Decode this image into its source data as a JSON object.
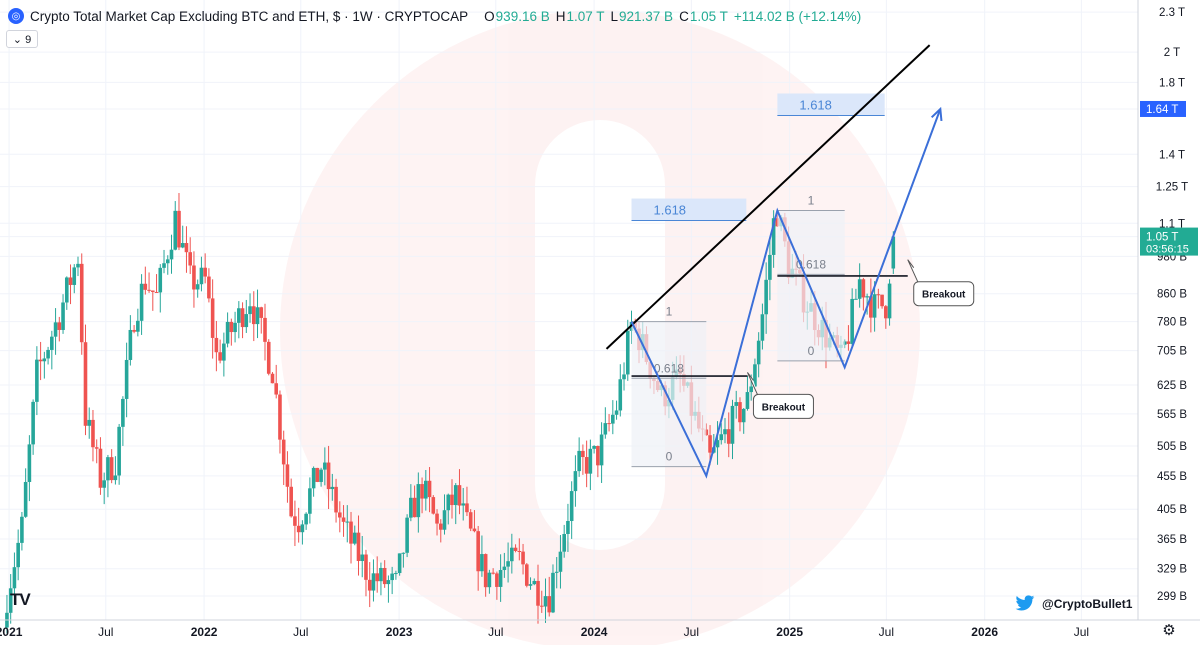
{
  "header": {
    "logo_icon": "crypto-logo-icon",
    "title": "Crypto Total Market Cap Excluding BTC and ETH, $ · 1W · CRYPTOCAP",
    "open_label": "O",
    "open_value": "939.16 B",
    "high_label": "H",
    "high_value": "1.07 T",
    "low_label": "L",
    "low_value": "921.37 B",
    "close_label": "C",
    "close_value": "1.05 T",
    "change": "+114.02 B (+12.14%)",
    "collapse_label": "⌄ 9"
  },
  "credit": {
    "handle": "@CryptoBullet1",
    "icon": "twitter-bird-icon"
  },
  "branding": {
    "logo": "TV"
  },
  "colors": {
    "up": "#26a69a",
    "down": "#ef5350",
    "trend": "#3b6fd8",
    "fib_fill": "#dbe7fa",
    "fib_text": "#4a86d6",
    "price_tag": "#2962ff",
    "last_price_tag": "#22ab94"
  },
  "chart_data": {
    "type": "candlestick",
    "title": "Crypto Total Market Cap Excluding BTC and ETH, $ · 1W · CRYPTOCAP",
    "y_axis": {
      "scale": "log",
      "ticks": [
        "2.3 T",
        "2 T",
        "1.8 T",
        "1.64 T",
        "1.4 T",
        "1.25 T",
        "1.1 T",
        "1.05 T",
        "980 B",
        "860 B",
        "780 B",
        "705 B",
        "625 B",
        "565 B",
        "505 B",
        "455 B",
        "405 B",
        "365 B",
        "329 B",
        "299 B"
      ],
      "tick_values": [
        2300,
        2000,
        1800,
        1640,
        1400,
        1250,
        1100,
        1050,
        980,
        860,
        780,
        705,
        625,
        565,
        505,
        455,
        405,
        365,
        329,
        299
      ],
      "range": [
        275,
        2400
      ],
      "unit": "B"
    },
    "x_axis": {
      "ticks": [
        "2021",
        "Jul",
        "2022",
        "Jul",
        "2023",
        "Jul",
        "2024",
        "Jul",
        "2025",
        "Jul",
        "2026",
        "Jul"
      ],
      "tick_dates": [
        "2021-01-01",
        "2021-07-01",
        "2022-01-01",
        "2022-07-01",
        "2023-01-01",
        "2023-07-01",
        "2024-01-01",
        "2024-07-01",
        "2025-01-01",
        "2025-07-01",
        "2026-01-01",
        "2026-07-01"
      ],
      "range": [
        "2020-12-15",
        "2026-10-15"
      ]
    },
    "price_tags": [
      {
        "label": "1.64 T",
        "value": 1640,
        "style": "target"
      },
      {
        "label": "1.05 T",
        "sublabel": "03:56:15",
        "value": 1050,
        "style": "last"
      }
    ],
    "candle_path": [
      [
        "2020-12-28",
        300
      ],
      [
        "2021-01-25",
        380
      ],
      [
        "2021-02-22",
        650
      ],
      [
        "2021-04-05",
        800
      ],
      [
        "2021-05-10",
        980
      ],
      [
        "2021-05-24",
        560
      ],
      [
        "2021-06-21",
        450
      ],
      [
        "2021-07-19",
        480
      ],
      [
        "2021-08-23",
        800
      ],
      [
        "2021-09-13",
        900
      ],
      [
        "2021-10-04",
        850
      ],
      [
        "2021-11-08",
        1120
      ],
      [
        "2021-12-06",
        900
      ],
      [
        "2022-01-03",
        900
      ],
      [
        "2022-01-24",
        690
      ],
      [
        "2022-03-28",
        850
      ],
      [
        "2022-05-09",
        660
      ],
      [
        "2022-06-13",
        400
      ],
      [
        "2022-06-27",
        390
      ],
      [
        "2022-08-08",
        470
      ],
      [
        "2022-09-19",
        380
      ],
      [
        "2022-11-07",
        320
      ],
      [
        "2022-12-26",
        310
      ],
      [
        "2023-01-23",
        400
      ],
      [
        "2023-02-13",
        440
      ],
      [
        "2023-03-13",
        380
      ],
      [
        "2023-04-17",
        425
      ],
      [
        "2023-06-12",
        320
      ],
      [
        "2023-08-14",
        340
      ],
      [
        "2023-09-11",
        310
      ],
      [
        "2023-10-09",
        300
      ],
      [
        "2023-10-30",
        360
      ],
      [
        "2023-12-04",
        470
      ],
      [
        "2024-01-08",
        490
      ],
      [
        "2024-02-12",
        580
      ],
      [
        "2024-03-11",
        770
      ],
      [
        "2024-03-25",
        740
      ],
      [
        "2024-05-06",
        600
      ],
      [
        "2024-06-10",
        640
      ],
      [
        "2024-08-05",
        480
      ],
      [
        "2024-09-09",
        540
      ],
      [
        "2024-10-14",
        590
      ],
      [
        "2024-11-11",
        800
      ],
      [
        "2024-12-02",
        1100
      ],
      [
        "2024-12-09",
        1150
      ],
      [
        "2024-12-30",
        950
      ],
      [
        "2025-02-03",
        830
      ],
      [
        "2025-03-03",
        760
      ],
      [
        "2025-04-07",
        680
      ],
      [
        "2025-04-21",
        750
      ],
      [
        "2025-05-12",
        900
      ],
      [
        "2025-06-09",
        820
      ],
      [
        "2025-06-30",
        830
      ],
      [
        "2025-07-14",
        1050
      ]
    ],
    "last_candle": {
      "open": 939.16,
      "high": 1070,
      "low": 921.37,
      "close": 1050,
      "change": "+114.02 B (+12.14%)"
    },
    "trendline_upper": [
      [
        "2024-03-11",
        770
      ],
      [
        "2025-09-20",
        2050
      ]
    ],
    "zigzag": [
      [
        "2024-03-11",
        780
      ],
      [
        "2024-07-29",
        455
      ],
      [
        "2024-12-09",
        1150
      ],
      [
        "2025-04-14",
        665
      ],
      [
        "2025-10-10",
        1640
      ]
    ],
    "fib_first": {
      "anchor_dates": [
        "2024-03-11",
        "2024-07-29"
      ],
      "levels": [
        {
          "label": "1",
          "value": 780
        },
        {
          "label": "0.618",
          "value": 640
        },
        {
          "label": "0",
          "value": 470
        }
      ],
      "extension": {
        "label": "1.618",
        "value": 1150
      }
    },
    "fib_second": {
      "anchor_dates": [
        "2024-12-09",
        "2025-04-14"
      ],
      "levels": [
        {
          "label": "1",
          "value": 1150
        },
        {
          "label": "0.618",
          "value": 920
        },
        {
          "label": "0",
          "value": 680
        }
      ],
      "extension": {
        "label": "1.618",
        "value": 1660
      }
    },
    "breakout_lines": [
      {
        "from": "2024-03-11",
        "to": "2024-10-14",
        "value": 645
      },
      {
        "from": "2024-12-09",
        "to": "2025-08-10",
        "value": 915
      }
    ],
    "annotations": [
      {
        "text": "Breakout",
        "date": "2024-10-14",
        "value": 580
      },
      {
        "text": "Breakout",
        "date": "2025-08-10",
        "value": 860
      }
    ]
  }
}
